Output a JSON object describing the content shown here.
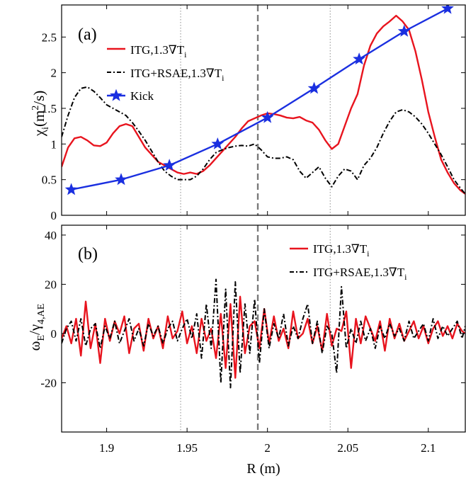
{
  "x_axis": {
    "label": "R (m)",
    "lim": [
      1.872,
      2.123
    ],
    "ticks": [
      1.9,
      1.95,
      2.0,
      2.05,
      2.1
    ],
    "tick_labels": [
      "1.9",
      "1.95",
      "2",
      "2.05",
      "2.1"
    ]
  },
  "vlines": {
    "dotted": [
      1.946,
      2.039
    ],
    "dashed": [
      1.994
    ]
  },
  "colors": {
    "itg": "#e8141e",
    "rsae": "#000000",
    "kick": "#1a2fe0"
  },
  "chart_data": [
    {
      "type": "line",
      "panel_label": "(a)",
      "ylabel": "χi(m²/s)",
      "ylabel_main": "χ",
      "ylabel_sub": "i",
      "ylabel_rest": "(m",
      "ylabel_sup": "2",
      "ylabel_end": "/s)",
      "ylim": [
        0,
        2.95
      ],
      "yticks": [
        0,
        0.5,
        1,
        1.5,
        2,
        2.5
      ],
      "ytick_labels": [
        "0",
        "0.5",
        "1",
        "1.5",
        "2",
        "2.5"
      ],
      "legend_placement": "top-left",
      "series": [
        {
          "name": "ITG,1.3∇Ti",
          "name_main": "ITG,1.3∇T",
          "name_sub": "i",
          "style": "solid",
          "color": "#e8141e",
          "x": [
            1.872,
            1.876,
            1.88,
            1.884,
            1.888,
            1.892,
            1.896,
            1.9,
            1.904,
            1.908,
            1.912,
            1.916,
            1.92,
            1.924,
            1.928,
            1.932,
            1.936,
            1.94,
            1.944,
            1.948,
            1.952,
            1.956,
            1.96,
            1.964,
            1.968,
            1.972,
            1.976,
            1.98,
            1.984,
            1.988,
            1.992,
            1.996,
            2.0,
            2.004,
            2.008,
            2.012,
            2.016,
            2.02,
            2.024,
            2.028,
            2.032,
            2.036,
            2.04,
            2.044,
            2.048,
            2.052,
            2.056,
            2.06,
            2.064,
            2.068,
            2.072,
            2.076,
            2.08,
            2.084,
            2.088,
            2.092,
            2.096,
            2.1,
            2.104,
            2.108,
            2.112,
            2.116,
            2.12,
            2.123
          ],
          "y": [
            0.68,
            0.95,
            1.08,
            1.1,
            1.05,
            0.98,
            0.97,
            1.02,
            1.15,
            1.25,
            1.28,
            1.25,
            1.1,
            0.95,
            0.85,
            0.75,
            0.7,
            0.65,
            0.6,
            0.58,
            0.6,
            0.58,
            0.62,
            0.7,
            0.8,
            0.9,
            1.0,
            1.1,
            1.22,
            1.32,
            1.36,
            1.4,
            1.43,
            1.42,
            1.4,
            1.37,
            1.36,
            1.38,
            1.33,
            1.3,
            1.2,
            1.05,
            0.93,
            1.0,
            1.25,
            1.5,
            1.7,
            2.1,
            2.38,
            2.55,
            2.65,
            2.72,
            2.8,
            2.72,
            2.6,
            2.3,
            1.9,
            1.45,
            1.1,
            0.78,
            0.6,
            0.45,
            0.35,
            0.3
          ]
        },
        {
          "name": "ITG+RSAE,1.3∇Ti",
          "name_main": "ITG+RSAE,1.3∇T",
          "name_sub": "i",
          "style": "dashdot",
          "color": "#000000",
          "x": [
            1.872,
            1.876,
            1.88,
            1.884,
            1.888,
            1.892,
            1.896,
            1.9,
            1.904,
            1.908,
            1.912,
            1.916,
            1.92,
            1.924,
            1.928,
            1.932,
            1.936,
            1.94,
            1.944,
            1.948,
            1.952,
            1.956,
            1.96,
            1.964,
            1.968,
            1.972,
            1.976,
            1.98,
            1.984,
            1.988,
            1.992,
            1.996,
            2.0,
            2.004,
            2.008,
            2.012,
            2.016,
            2.02,
            2.024,
            2.028,
            2.032,
            2.036,
            2.04,
            2.044,
            2.048,
            2.052,
            2.056,
            2.06,
            2.064,
            2.068,
            2.072,
            2.076,
            2.08,
            2.084,
            2.088,
            2.092,
            2.096,
            2.1,
            2.104,
            2.108,
            2.112,
            2.116,
            2.12,
            2.123
          ],
          "y": [
            1.1,
            1.4,
            1.65,
            1.78,
            1.8,
            1.74,
            1.65,
            1.55,
            1.5,
            1.45,
            1.4,
            1.3,
            1.18,
            1.05,
            0.9,
            0.75,
            0.62,
            0.55,
            0.5,
            0.5,
            0.5,
            0.55,
            0.65,
            0.78,
            0.88,
            0.92,
            0.95,
            0.97,
            0.98,
            0.97,
            1.0,
            0.92,
            0.82,
            0.8,
            0.8,
            0.82,
            0.78,
            0.62,
            0.52,
            0.6,
            0.68,
            0.52,
            0.4,
            0.55,
            0.65,
            0.62,
            0.5,
            0.7,
            0.8,
            0.95,
            1.15,
            1.32,
            1.45,
            1.48,
            1.45,
            1.38,
            1.28,
            1.15,
            1.0,
            0.85,
            0.68,
            0.5,
            0.38,
            0.3
          ]
        },
        {
          "name": "Kick",
          "style": "solid-star",
          "color": "#1a2fe0",
          "x": [
            1.878,
            1.909,
            1.939,
            1.969,
            2.0,
            2.029,
            2.057,
            2.085,
            2.112
          ],
          "y": [
            0.36,
            0.5,
            0.7,
            1.0,
            1.37,
            1.78,
            2.19,
            2.58,
            2.9
          ]
        }
      ]
    },
    {
      "type": "line",
      "panel_label": "(b)",
      "ylabel": "ωE/γ4,AE",
      "ylabel_main": "ω",
      "ylabel_sub": "E",
      "ylabel_mid": "/γ",
      "ylabel_sub2": "4,AE",
      "ylim": [
        -40,
        44
      ],
      "yticks": [
        -20,
        0,
        20,
        40
      ],
      "ytick_labels": [
        "-20",
        "0",
        "20",
        "40"
      ],
      "legend_placement": "top-right",
      "series": [
        {
          "name": "ITG,1.3∇Ti",
          "name_main": "ITG,1.3∇T",
          "name_sub": "i",
          "style": "solid",
          "color": "#e8141e",
          "x": [
            1.872,
            1.875,
            1.878,
            1.881,
            1.884,
            1.887,
            1.89,
            1.893,
            1.896,
            1.899,
            1.902,
            1.905,
            1.908,
            1.911,
            1.914,
            1.917,
            1.92,
            1.923,
            1.926,
            1.929,
            1.932,
            1.935,
            1.938,
            1.941,
            1.944,
            1.947,
            1.95,
            1.953,
            1.956,
            1.959,
            1.962,
            1.965,
            1.968,
            1.971,
            1.974,
            1.977,
            1.98,
            1.983,
            1.986,
            1.989,
            1.992,
            1.995,
            1.998,
            2.001,
            2.004,
            2.007,
            2.01,
            2.013,
            2.016,
            2.019,
            2.022,
            2.025,
            2.028,
            2.031,
            2.034,
            2.037,
            2.04,
            2.043,
            2.046,
            2.049,
            2.052,
            2.055,
            2.058,
            2.061,
            2.064,
            2.067,
            2.07,
            2.073,
            2.076,
            2.079,
            2.082,
            2.085,
            2.088,
            2.091,
            2.094,
            2.097,
            2.1,
            2.103,
            2.106,
            2.109,
            2.112,
            2.115,
            2.118,
            2.121,
            2.123
          ],
          "y": [
            -2,
            3,
            -4,
            6,
            -9,
            13,
            -6,
            4,
            -12,
            6,
            -3,
            5,
            0,
            7,
            -8,
            2,
            4,
            -7,
            6,
            -2,
            3,
            -6,
            7,
            -2,
            1,
            9,
            -4,
            3,
            -8,
            6,
            -3,
            2,
            -10,
            8,
            -14,
            12,
            -18,
            15,
            -8,
            3,
            5,
            -6,
            10,
            -4,
            7,
            -3,
            2,
            -6,
            9,
            -2,
            0,
            6,
            -4,
            3,
            -7,
            8,
            -5,
            2,
            1,
            9,
            -14,
            6,
            -4,
            7,
            2,
            -3,
            5,
            -7,
            6,
            -2,
            4,
            -3,
            1,
            5,
            -2,
            3,
            -4,
            2,
            5,
            -1,
            3,
            -2,
            4,
            1,
            0
          ]
        },
        {
          "name": "ITG+RSAE,1.3∇Ti",
          "name_main": "ITG+RSAE,1.3∇T",
          "name_sub": "i",
          "style": "dashdot",
          "color": "#000000",
          "x": [
            1.872,
            1.875,
            1.878,
            1.881,
            1.884,
            1.887,
            1.89,
            1.893,
            1.896,
            1.899,
            1.902,
            1.905,
            1.908,
            1.911,
            1.914,
            1.917,
            1.92,
            1.923,
            1.926,
            1.929,
            1.932,
            1.935,
            1.938,
            1.941,
            1.944,
            1.947,
            1.95,
            1.953,
            1.956,
            1.959,
            1.962,
            1.965,
            1.968,
            1.971,
            1.974,
            1.977,
            1.98,
            1.983,
            1.986,
            1.989,
            1.992,
            1.995,
            1.998,
            2.001,
            2.004,
            2.007,
            2.01,
            2.013,
            2.016,
            2.019,
            2.022,
            2.025,
            2.028,
            2.031,
            2.034,
            2.037,
            2.04,
            2.043,
            2.046,
            2.049,
            2.052,
            2.055,
            2.058,
            2.061,
            2.064,
            2.067,
            2.07,
            2.073,
            2.076,
            2.079,
            2.082,
            2.085,
            2.088,
            2.091,
            2.094,
            2.097,
            2.1,
            2.103,
            2.106,
            2.109,
            2.112,
            2.115,
            2.118,
            2.121,
            2.123
          ],
          "y": [
            -4,
            2,
            5,
            -3,
            6,
            -5,
            2,
            4,
            -6,
            3,
            -2,
            5,
            -4,
            1,
            6,
            -3,
            2,
            -5,
            4,
            -1,
            3,
            -4,
            2,
            5,
            -3,
            2,
            6,
            -2,
            8,
            -10,
            12,
            -6,
            22,
            -20,
            18,
            -22,
            21,
            -16,
            12,
            -8,
            14,
            -12,
            10,
            -6,
            4,
            -2,
            8,
            -5,
            3,
            -2,
            6,
            12,
            -4,
            5,
            -8,
            3,
            0,
            -16,
            19,
            -6,
            2,
            -4,
            5,
            -3,
            2,
            -6,
            3,
            -2,
            4,
            -1,
            2,
            -3,
            5,
            -2,
            1,
            4,
            -3,
            6,
            -2,
            3,
            -1,
            2,
            5,
            -2,
            3
          ]
        }
      ]
    }
  ]
}
